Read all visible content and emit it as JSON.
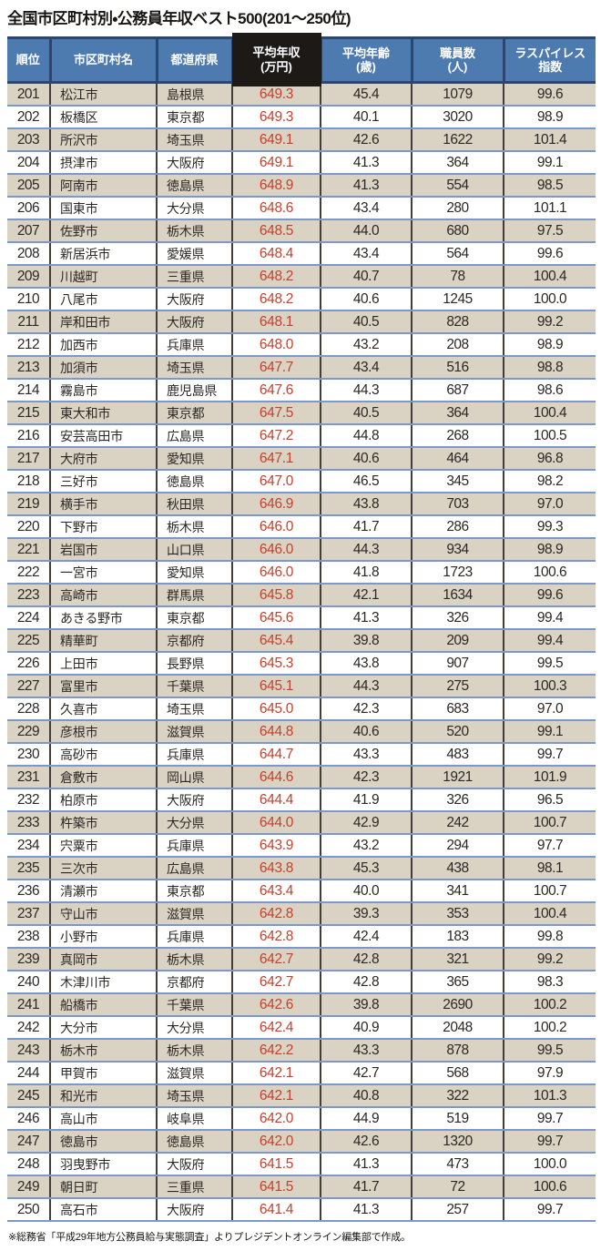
{
  "title": "全国市区町村別・公務員年収ベスト500(201〜250位)",
  "footnote": "※総務省「平成29年地方公務員給与実態調査」よりプレジデントオンライン編集部で作成。",
  "colors": {
    "header_blue": "#4d7bb0",
    "header_border_navy": "#2c4673",
    "income_header_black": "#1d1917",
    "income_value_red": "#c7402c",
    "row_shaded_beige": "#dad3c3",
    "row_separator_blue": "#7b98c6",
    "cell_divider_dark": "#433d38"
  },
  "chart_data": {
    "type": "table",
    "title": "全国市区町村別・公務員年収ベスト500(201〜250位)",
    "columns": [
      {
        "key": "rank",
        "label": "順位",
        "sub": ""
      },
      {
        "key": "city",
        "label": "市区町村名",
        "sub": ""
      },
      {
        "key": "pref",
        "label": "都道府県",
        "sub": ""
      },
      {
        "key": "income",
        "label": "平均年収",
        "sub": "(万円)"
      },
      {
        "key": "age",
        "label": "平均年齢",
        "sub": "(歳)"
      },
      {
        "key": "staff",
        "label": "職員数",
        "sub": "(人)"
      },
      {
        "key": "laspeyres",
        "label": "ラスパイレス",
        "sub": "指数"
      }
    ],
    "rows": [
      [
        "201",
        "松江市",
        "島根県",
        "649.3",
        "45.4",
        "1079",
        "99.6"
      ],
      [
        "202",
        "板橋区",
        "東京都",
        "649.3",
        "40.1",
        "3020",
        "98.9"
      ],
      [
        "203",
        "所沢市",
        "埼玉県",
        "649.1",
        "42.6",
        "1622",
        "101.4"
      ],
      [
        "204",
        "摂津市",
        "大阪府",
        "649.1",
        "41.3",
        "364",
        "99.1"
      ],
      [
        "205",
        "阿南市",
        "徳島県",
        "648.9",
        "41.3",
        "554",
        "98.5"
      ],
      [
        "206",
        "国東市",
        "大分県",
        "648.6",
        "43.4",
        "280",
        "101.1"
      ],
      [
        "207",
        "佐野市",
        "栃木県",
        "648.5",
        "44.0",
        "680",
        "97.5"
      ],
      [
        "208",
        "新居浜市",
        "愛媛県",
        "648.4",
        "43.4",
        "564",
        "99.6"
      ],
      [
        "209",
        "川越町",
        "三重県",
        "648.2",
        "40.7",
        "78",
        "100.4"
      ],
      [
        "210",
        "八尾市",
        "大阪府",
        "648.2",
        "40.6",
        "1245",
        "100.0"
      ],
      [
        "211",
        "岸和田市",
        "大阪府",
        "648.1",
        "40.5",
        "828",
        "99.2"
      ],
      [
        "212",
        "加西市",
        "兵庫県",
        "648.0",
        "43.2",
        "208",
        "98.9"
      ],
      [
        "213",
        "加須市",
        "埼玉県",
        "647.7",
        "43.4",
        "516",
        "98.8"
      ],
      [
        "214",
        "霧島市",
        "鹿児島県",
        "647.6",
        "44.3",
        "687",
        "98.6"
      ],
      [
        "215",
        "東大和市",
        "東京都",
        "647.5",
        "40.5",
        "364",
        "100.4"
      ],
      [
        "216",
        "安芸高田市",
        "広島県",
        "647.2",
        "44.8",
        "268",
        "100.5"
      ],
      [
        "217",
        "大府市",
        "愛知県",
        "647.1",
        "40.6",
        "464",
        "96.8"
      ],
      [
        "218",
        "三好市",
        "徳島県",
        "647.0",
        "46.5",
        "345",
        "98.2"
      ],
      [
        "219",
        "横手市",
        "秋田県",
        "646.9",
        "43.8",
        "703",
        "97.0"
      ],
      [
        "220",
        "下野市",
        "栃木県",
        "646.0",
        "41.7",
        "286",
        "99.3"
      ],
      [
        "221",
        "岩国市",
        "山口県",
        "646.0",
        "44.3",
        "934",
        "98.9"
      ],
      [
        "222",
        "一宮市",
        "愛知県",
        "646.0",
        "41.8",
        "1723",
        "100.6"
      ],
      [
        "223",
        "高崎市",
        "群馬県",
        "645.8",
        "42.1",
        "1634",
        "99.6"
      ],
      [
        "224",
        "あきる野市",
        "東京都",
        "645.6",
        "41.3",
        "326",
        "99.4"
      ],
      [
        "225",
        "精華町",
        "京都府",
        "645.4",
        "39.8",
        "209",
        "99.4"
      ],
      [
        "226",
        "上田市",
        "長野県",
        "645.3",
        "43.8",
        "907",
        "99.5"
      ],
      [
        "227",
        "富里市",
        "千葉県",
        "645.1",
        "44.3",
        "275",
        "100.3"
      ],
      [
        "228",
        "久喜市",
        "埼玉県",
        "645.0",
        "42.3",
        "683",
        "97.0"
      ],
      [
        "229",
        "彦根市",
        "滋賀県",
        "644.8",
        "40.6",
        "520",
        "99.1"
      ],
      [
        "230",
        "高砂市",
        "兵庫県",
        "644.7",
        "43.3",
        "483",
        "99.7"
      ],
      [
        "231",
        "倉敷市",
        "岡山県",
        "644.6",
        "42.3",
        "1921",
        "101.9"
      ],
      [
        "232",
        "柏原市",
        "大阪府",
        "644.4",
        "41.9",
        "326",
        "96.5"
      ],
      [
        "233",
        "杵築市",
        "大分県",
        "644.0",
        "42.9",
        "242",
        "100.7"
      ],
      [
        "234",
        "宍粟市",
        "兵庫県",
        "643.9",
        "43.2",
        "294",
        "97.7"
      ],
      [
        "235",
        "三次市",
        "広島県",
        "643.8",
        "45.3",
        "438",
        "98.1"
      ],
      [
        "236",
        "清瀬市",
        "東京都",
        "643.4",
        "40.0",
        "341",
        "100.7"
      ],
      [
        "237",
        "守山市",
        "滋賀県",
        "642.8",
        "39.3",
        "353",
        "100.4"
      ],
      [
        "238",
        "小野市",
        "兵庫県",
        "642.8",
        "42.4",
        "183",
        "99.8"
      ],
      [
        "239",
        "真岡市",
        "栃木県",
        "642.7",
        "42.8",
        "321",
        "99.2"
      ],
      [
        "240",
        "木津川市",
        "京都府",
        "642.7",
        "42.8",
        "365",
        "98.3"
      ],
      [
        "241",
        "船橋市",
        "千葉県",
        "642.6",
        "39.8",
        "2690",
        "100.2"
      ],
      [
        "242",
        "大分市",
        "大分県",
        "642.4",
        "40.9",
        "2048",
        "100.2"
      ],
      [
        "243",
        "栃木市",
        "栃木県",
        "642.2",
        "43.3",
        "878",
        "99.5"
      ],
      [
        "244",
        "甲賀市",
        "滋賀県",
        "642.1",
        "42.7",
        "568",
        "97.9"
      ],
      [
        "245",
        "和光市",
        "埼玉県",
        "642.1",
        "40.8",
        "322",
        "101.3"
      ],
      [
        "246",
        "高山市",
        "岐阜県",
        "642.0",
        "44.9",
        "519",
        "99.7"
      ],
      [
        "247",
        "徳島市",
        "徳島県",
        "642.0",
        "42.6",
        "1320",
        "99.7"
      ],
      [
        "248",
        "羽曳野市",
        "大阪府",
        "641.5",
        "41.3",
        "473",
        "100.0"
      ],
      [
        "249",
        "朝日町",
        "三重県",
        "641.5",
        "41.7",
        "72",
        "100.6"
      ],
      [
        "250",
        "高石市",
        "大阪府",
        "641.4",
        "41.3",
        "257",
        "99.7"
      ]
    ]
  }
}
